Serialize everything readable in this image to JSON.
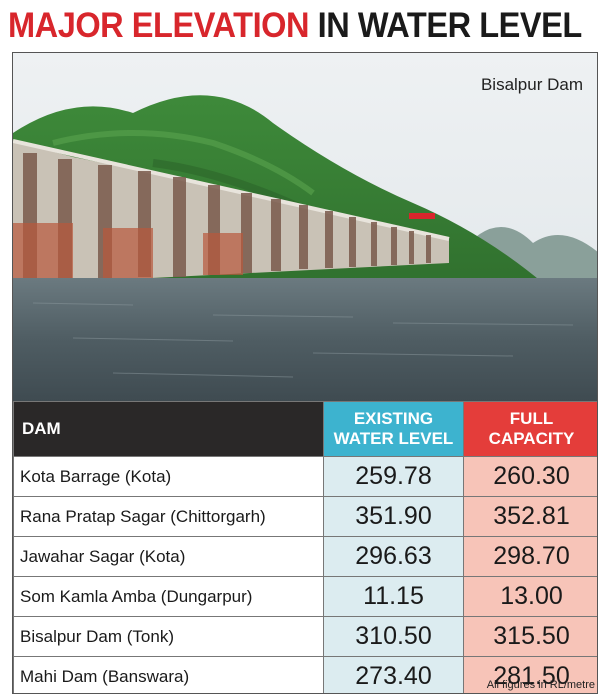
{
  "headline": {
    "part1": "MAJOR ELEVATION",
    "part2": "IN WATER LEVEL"
  },
  "photo": {
    "caption": "Bisalpur Dam"
  },
  "table": {
    "headers": {
      "dam": "DAM",
      "existing_line1": "EXISTING",
      "existing_line2": "WATER LEVEL",
      "full_line1": "FULL",
      "full_line2": "CAPACITY"
    },
    "rows": [
      {
        "dam": "Kota Barrage (Kota)",
        "existing": "259.78",
        "full": "260.30"
      },
      {
        "dam": "Rana Pratap Sagar (Chittorgarh)",
        "existing": "351.90",
        "full": "352.81"
      },
      {
        "dam": "Jawahar Sagar (Kota)",
        "existing": "296.63",
        "full": "298.70"
      },
      {
        "dam": "Som Kamla Amba (Dungarpur)",
        "existing": "11.15",
        "full": "13.00"
      },
      {
        "dam": "Bisalpur Dam (Tonk)",
        "existing": "310.50",
        "full": "315.50"
      },
      {
        "dam": "Mahi Dam (Banswara)",
        "existing": "273.40",
        "full": "281.50"
      }
    ]
  },
  "footnote": "All figures in RL/metre",
  "colors": {
    "headline_red": "#d8262c",
    "existing_header": "#3db3cf",
    "full_header": "#e43d3a",
    "existing_cell": "#dcecf0",
    "full_cell": "#f7c4b8"
  }
}
